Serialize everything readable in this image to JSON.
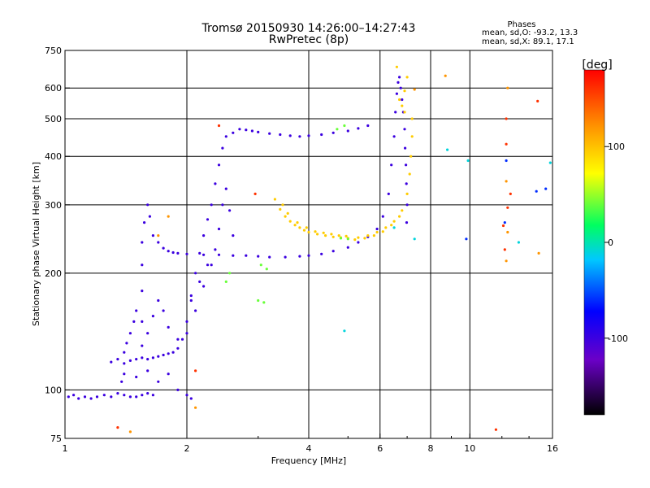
{
  "chart_data": {
    "type": "scatter",
    "title": "Tromsø 20150930 14:26:00–14:27:43",
    "subtitle": "RwPretec (8p)",
    "stats_header": "Phases",
    "stats_o": "mean, sd,O: -93.2, 13.3",
    "stats_x": "mean, sd,X:  89.1, 17.1",
    "xlabel": "Frequency [MHz]",
    "ylabel": "Stationary phase Virtual Height [km]",
    "xscale": "log",
    "yscale": "log",
    "xlim": [
      1,
      16
    ],
    "ylim": [
      75,
      750
    ],
    "xticks": [
      1,
      2,
      4,
      6,
      8,
      10,
      16
    ],
    "xtick_labels": [
      "1",
      "2",
      "4",
      "6",
      "8",
      "10",
      "16"
    ],
    "yticks": [
      75,
      100,
      200,
      300,
      400,
      500,
      600,
      750
    ],
    "ytick_labels": [
      "75",
      "100",
      "200",
      "300",
      "400",
      "500",
      "600",
      "750"
    ],
    "grid": true,
    "colorbar": {
      "label": "[deg]",
      "range": [
        -180,
        180
      ],
      "ticks": [
        100,
        0,
        -100
      ],
      "tick_labels": [
        "100",
        "0",
        "-100"
      ]
    },
    "series": [
      {
        "phase": -100,
        "points": [
          [
            1.02,
            96
          ],
          [
            1.05,
            97
          ],
          [
            1.08,
            95
          ],
          [
            1.12,
            96
          ],
          [
            1.16,
            95
          ],
          [
            1.2,
            96
          ],
          [
            1.25,
            97
          ],
          [
            1.3,
            96
          ],
          [
            1.35,
            98
          ],
          [
            1.4,
            97
          ],
          [
            1.45,
            96
          ],
          [
            1.5,
            96
          ],
          [
            1.55,
            97
          ],
          [
            1.6,
            98
          ],
          [
            1.65,
            97
          ],
          [
            1.3,
            118
          ],
          [
            1.35,
            120
          ],
          [
            1.4,
            117
          ],
          [
            1.45,
            119
          ],
          [
            1.5,
            120
          ],
          [
            1.55,
            121
          ],
          [
            1.6,
            120
          ],
          [
            1.65,
            121
          ],
          [
            1.7,
            122
          ],
          [
            1.75,
            123
          ],
          [
            1.8,
            124
          ],
          [
            1.85,
            125
          ],
          [
            1.9,
            128
          ],
          [
            1.95,
            135
          ],
          [
            2.0,
            150
          ],
          [
            2.05,
            175
          ],
          [
            2.1,
            200
          ],
          [
            2.15,
            225
          ],
          [
            2.2,
            250
          ],
          [
            2.25,
            275
          ],
          [
            2.3,
            300
          ],
          [
            2.35,
            340
          ],
          [
            2.4,
            380
          ],
          [
            2.45,
            420
          ],
          [
            2.5,
            450
          ],
          [
            2.6,
            460
          ],
          [
            2.7,
            470
          ],
          [
            2.8,
            468
          ],
          [
            2.9,
            465
          ],
          [
            3.0,
            462
          ],
          [
            3.2,
            458
          ],
          [
            3.4,
            455
          ],
          [
            3.6,
            452
          ],
          [
            3.8,
            450
          ],
          [
            4.0,
            452
          ],
          [
            4.3,
            455
          ],
          [
            4.6,
            460
          ],
          [
            5.0,
            465
          ],
          [
            5.3,
            472
          ],
          [
            5.6,
            480
          ],
          [
            1.55,
            130
          ],
          [
            1.55,
            150
          ],
          [
            1.55,
            180
          ],
          [
            1.55,
            210
          ],
          [
            1.55,
            240
          ],
          [
            1.57,
            270
          ],
          [
            1.6,
            300
          ],
          [
            1.62,
            280
          ],
          [
            1.65,
            250
          ],
          [
            1.7,
            240
          ],
          [
            1.75,
            232
          ],
          [
            1.8,
            228
          ],
          [
            1.85,
            226
          ],
          [
            1.9,
            225
          ],
          [
            2.0,
            224
          ],
          [
            2.2,
            223
          ],
          [
            2.4,
            223
          ],
          [
            2.6,
            222
          ],
          [
            2.8,
            222
          ],
          [
            3.0,
            221
          ],
          [
            3.2,
            220
          ],
          [
            3.5,
            220
          ],
          [
            3.8,
            221
          ],
          [
            4.0,
            222
          ],
          [
            4.3,
            224
          ],
          [
            4.6,
            228
          ],
          [
            5.0,
            233
          ],
          [
            5.3,
            240
          ],
          [
            5.6,
            248
          ],
          [
            5.9,
            260
          ],
          [
            6.1,
            280
          ],
          [
            6.3,
            320
          ],
          [
            6.4,
            380
          ],
          [
            6.5,
            450
          ],
          [
            6.55,
            520
          ],
          [
            6.6,
            580
          ],
          [
            6.65,
            620
          ],
          [
            6.7,
            640
          ],
          [
            6.75,
            600
          ],
          [
            6.8,
            560
          ],
          [
            6.85,
            520
          ],
          [
            6.9,
            470
          ],
          [
            6.92,
            420
          ],
          [
            6.95,
            380
          ],
          [
            6.97,
            340
          ],
          [
            7.0,
            300
          ],
          [
            6.98,
            270
          ],
          [
            1.6,
            140
          ],
          [
            1.65,
            155
          ],
          [
            1.7,
            170
          ],
          [
            1.75,
            160
          ],
          [
            1.8,
            145
          ],
          [
            1.9,
            135
          ],
          [
            2.0,
            140
          ],
          [
            2.1,
            160
          ],
          [
            2.2,
            185
          ],
          [
            2.3,
            210
          ],
          [
            2.4,
            260
          ],
          [
            2.45,
            300
          ],
          [
            2.5,
            330
          ],
          [
            2.55,
            290
          ],
          [
            2.6,
            250
          ],
          [
            2.35,
            230
          ],
          [
            2.25,
            210
          ],
          [
            2.15,
            190
          ],
          [
            2.05,
            170
          ],
          [
            1.5,
            160
          ],
          [
            1.48,
            150
          ],
          [
            1.45,
            140
          ],
          [
            1.42,
            132
          ],
          [
            1.4,
            125
          ],
          [
            1.4,
            110
          ],
          [
            1.38,
            105
          ],
          [
            1.5,
            108
          ],
          [
            1.6,
            112
          ],
          [
            2.0,
            97
          ],
          [
            2.05,
            95
          ],
          [
            1.9,
            100
          ],
          [
            1.7,
            105
          ],
          [
            1.8,
            110
          ]
        ]
      },
      {
        "phase": 95,
        "points": [
          [
            3.3,
            310
          ],
          [
            3.4,
            292
          ],
          [
            3.5,
            280
          ],
          [
            3.6,
            272
          ],
          [
            3.7,
            266
          ],
          [
            3.8,
            262
          ],
          [
            3.9,
            258
          ],
          [
            4.0,
            255
          ],
          [
            4.2,
            252
          ],
          [
            4.4,
            250
          ],
          [
            4.6,
            248
          ],
          [
            4.8,
            247
          ],
          [
            5.0,
            246
          ],
          [
            5.3,
            247
          ],
          [
            5.6,
            250
          ],
          [
            5.9,
            255
          ],
          [
            6.2,
            262
          ],
          [
            6.5,
            272
          ],
          [
            6.8,
            290
          ],
          [
            7.0,
            320
          ],
          [
            7.1,
            360
          ],
          [
            7.15,
            400
          ],
          [
            7.2,
            450
          ],
          [
            7.2,
            500
          ],
          [
            6.9,
            520
          ],
          [
            6.8,
            540
          ],
          [
            6.7,
            560
          ],
          [
            6.9,
            590
          ],
          [
            7.0,
            640
          ],
          [
            6.6,
            680
          ],
          [
            3.45,
            300
          ],
          [
            3.55,
            285
          ],
          [
            3.75,
            270
          ],
          [
            3.95,
            262
          ],
          [
            4.15,
            256
          ],
          [
            4.35,
            254
          ],
          [
            4.55,
            252
          ],
          [
            4.75,
            250
          ],
          [
            4.95,
            249
          ],
          [
            5.2,
            244
          ],
          [
            5.5,
            246
          ],
          [
            5.8,
            250
          ],
          [
            6.1,
            256
          ],
          [
            6.4,
            266
          ],
          [
            6.7,
            280
          ]
        ]
      },
      {
        "phase": 40,
        "points": [
          [
            3.05,
            210
          ],
          [
            3.0,
            170
          ],
          [
            3.1,
            168
          ],
          [
            3.15,
            205
          ],
          [
            4.8,
            246
          ],
          [
            5.0,
            245
          ],
          [
            4.9,
            480
          ],
          [
            4.7,
            470
          ],
          [
            2.55,
            200
          ],
          [
            2.5,
            190
          ]
        ]
      },
      {
        "phase": -10,
        "points": [
          [
            4.9,
            142
          ],
          [
            8.8,
            416
          ],
          [
            9.9,
            390
          ],
          [
            13.2,
            240
          ],
          [
            15.8,
            385
          ],
          [
            6.5,
            262
          ],
          [
            7.3,
            245
          ]
        ]
      },
      {
        "phase": 160,
        "points": [
          [
            12.3,
            500
          ],
          [
            12.3,
            430
          ],
          [
            12.1,
            265
          ],
          [
            12.2,
            230
          ],
          [
            12.4,
            295
          ],
          [
            14.7,
            555
          ],
          [
            12.6,
            320
          ],
          [
            11.6,
            79
          ],
          [
            1.35,
            80
          ],
          [
            2.1,
            112
          ],
          [
            2.4,
            480
          ],
          [
            2.95,
            320
          ]
        ]
      },
      {
        "phase": 120,
        "points": [
          [
            12.4,
            600
          ],
          [
            12.3,
            345
          ],
          [
            12.4,
            255
          ],
          [
            12.3,
            215
          ],
          [
            14.8,
            225
          ],
          [
            8.7,
            645
          ],
          [
            7.3,
            595
          ],
          [
            1.45,
            78
          ],
          [
            1.8,
            280
          ],
          [
            2.1,
            90
          ],
          [
            1.7,
            250
          ]
        ]
      },
      {
        "phase": -60,
        "points": [
          [
            12.2,
            270
          ],
          [
            12.3,
            390
          ],
          [
            15.4,
            330
          ],
          [
            14.6,
            325
          ],
          [
            9.8,
            245
          ]
        ]
      }
    ]
  }
}
